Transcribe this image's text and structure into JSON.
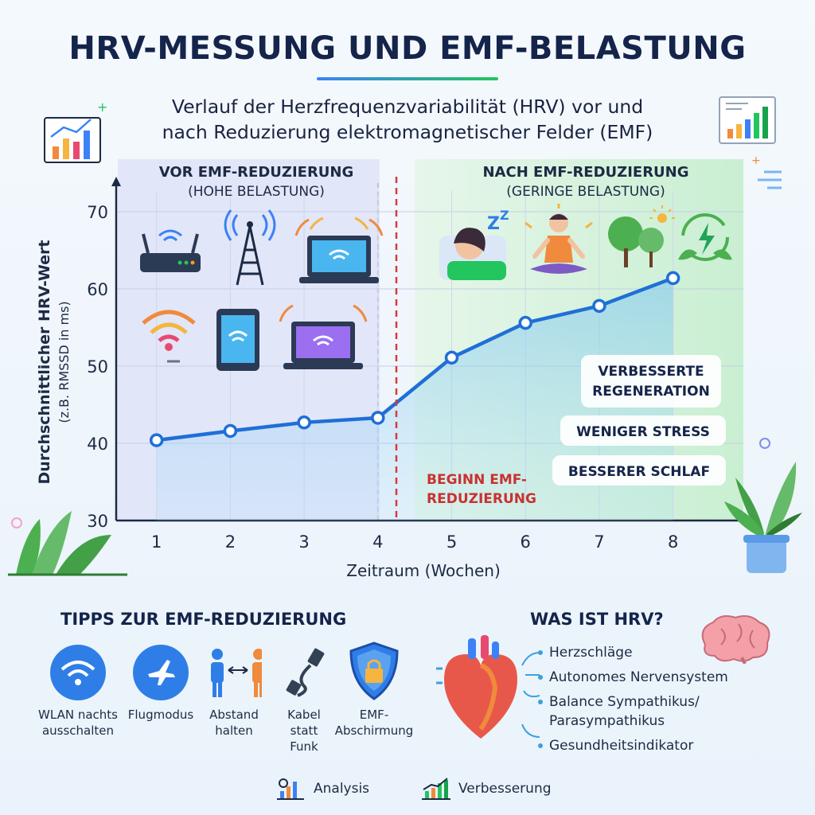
{
  "title": "HRV-MESSUNG UND EMF-BELASTUNG",
  "subtitle_line1": "Verlauf der Herzfrequenzvariabilität (HRV) vor und",
  "subtitle_line2": "nach Reduzierung elektromagnetischer Felder (EMF)",
  "chart_data": {
    "type": "line",
    "x": [
      1,
      2,
      3,
      4,
      5,
      6,
      7,
      8
    ],
    "series": [
      {
        "name": "",
        "values": [
          40.4,
          41.6,
          42.7,
          43.3,
          51.1,
          55.6,
          57.8,
          61.4
        ]
      }
    ],
    "xlabel": "Zeitraum (Wochen)",
    "ylabel_line1": "Durchschnittlicher HRV-Wert",
    "ylabel_line2": "(z.B. RMSSD in ms)",
    "xlim": [
      0,
      8.5
    ],
    "ylim": [
      30,
      70
    ],
    "yticks": [
      30,
      40,
      50,
      60,
      70
    ],
    "xticks": [
      "1",
      "2",
      "3",
      "4",
      "5",
      "6",
      "7",
      "8"
    ],
    "grid": true,
    "colors": {
      "line": "#1f6fd6",
      "before_zone": "#dfe3f8",
      "after_zone": "#d5f1dc",
      "marker_line": "#d63a3a"
    },
    "zones": {
      "before": {
        "title": "VOR EMF-REDUZIERUNG",
        "sub": "(HOHE BELASTUNG)",
        "x_range": [
          0,
          4
        ]
      },
      "after": {
        "title": "NACH EMF-REDUZIERUNG",
        "sub": "(GERINGE BELASTUNG)",
        "x_range": [
          4.5,
          8.5
        ]
      }
    },
    "marker": {
      "x": 4.25,
      "label_line1": "BEGINN EMF-",
      "label_line2": "REDUZIERUNG"
    },
    "annotations": [
      {
        "line1": "VERBESSERTE",
        "line2": "REGENERATION"
      },
      {
        "line1": "WENIGER STRESS"
      },
      {
        "line1": "BESSERER SCHLAF"
      }
    ]
  },
  "tips": {
    "title": "TIPPS ZUR EMF-REDUZIERUNG",
    "items": [
      {
        "line1": "WLAN nachts",
        "line2": "ausschalten",
        "line3": "",
        "icon": "wifi-icon",
        "color": "#2f7ee8"
      },
      {
        "line1": "Flugmodus",
        "line2": "",
        "line3": "",
        "icon": "airplane-icon",
        "color": "#2f7ee8"
      },
      {
        "line1": "Abstand",
        "line2": "halten",
        "line3": "",
        "icon": "distance-icon",
        "color": "#f08a3c"
      },
      {
        "line1": "Kabel",
        "line2": "statt",
        "line3": "Funk",
        "icon": "cable-icon",
        "color": "#334155"
      },
      {
        "line1": "EMF-",
        "line2": "Abschirmung",
        "line3": "",
        "icon": "shield-icon",
        "color": "#2f7ee8"
      }
    ]
  },
  "hrv": {
    "title": "WAS IST HRV?",
    "items": [
      "Herzschläge",
      "Autonomes Nervensystem",
      "Balance Sympathikus/",
      "Parasympathikus",
      "Gesundheitsindikator"
    ]
  },
  "footer": {
    "analysis": "Analysis",
    "improvement": "Verbesserung"
  }
}
